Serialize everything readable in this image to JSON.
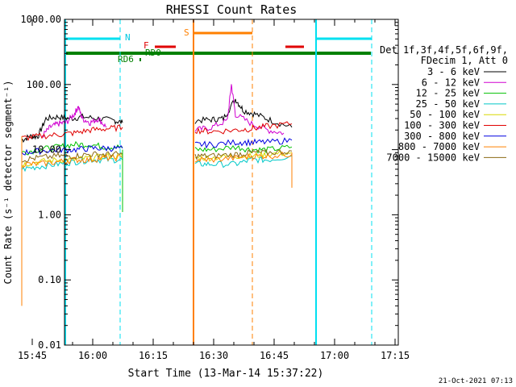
{
  "chart_data": {
    "type": "line",
    "title": "RHESSI Count Rates",
    "xlabel": "Start Time (13-Mar-14 15:37:22)",
    "ylabel": "Count Rate (s⁻¹ detector segment⁻¹)",
    "ylog": true,
    "ylim": [
      0.01,
      1000
    ],
    "xlim_minutes": [
      15.6,
      98.4
    ],
    "y_ticks": [
      "1000.00",
      "100.00",
      "10.00",
      "1.00",
      "0.10",
      "0.01"
    ],
    "x_ticks": [
      {
        "label": "15:45",
        "min": 7.6
      },
      {
        "label": "16:00",
        "min": 22.6
      },
      {
        "label": "16:15",
        "min": 37.6
      },
      {
        "label": "16:30",
        "min": 52.6
      },
      {
        "label": "16:45",
        "min": 67.6
      },
      {
        "label": "17:00",
        "min": 82.6
      },
      {
        "label": "17:15",
        "min": 97.6
      }
    ],
    "timestamp": "21-Oct-2021 07:13",
    "legend": {
      "header": [
        "Det 1f,3f,4f,5f,6f,9f,",
        "FDecim 1, Att 0"
      ],
      "placement": "right"
    },
    "series": [
      {
        "name": "3 - 6 keV",
        "color": "#000000",
        "seg1": [
          [
            5,
            14
          ],
          [
            7,
            16
          ],
          [
            9,
            16
          ],
          [
            11,
            30
          ],
          [
            14,
            32
          ],
          [
            17,
            30
          ],
          [
            20,
            32
          ],
          [
            24,
            30
          ],
          [
            28,
            28
          ],
          [
            30,
            26
          ]
        ],
        "seg2": [
          [
            48,
            28
          ],
          [
            52,
            29
          ],
          [
            55,
            30
          ],
          [
            58,
            60
          ],
          [
            60,
            40
          ],
          [
            63,
            35
          ],
          [
            67,
            28
          ],
          [
            72,
            22
          ]
        ]
      },
      {
        "name": "6 - 12 keV",
        "color": "#d000d0",
        "seg1": [
          [
            10,
            16
          ],
          [
            12,
            22
          ],
          [
            14,
            25
          ],
          [
            16,
            26
          ],
          [
            18,
            35
          ],
          [
            19,
            46
          ],
          [
            20,
            30
          ],
          [
            22,
            26
          ],
          [
            24,
            30
          ],
          [
            26,
            22
          ]
        ],
        "seg2": [
          [
            48,
            20
          ],
          [
            52,
            22
          ],
          [
            56,
            28
          ],
          [
            57,
            100
          ],
          [
            58,
            35
          ],
          [
            62,
            25
          ],
          [
            66,
            20
          ],
          [
            70,
            18
          ]
        ]
      },
      {
        "name": "12 - 25 keV",
        "color": "#00c000",
        "seg1": [
          [
            5,
            9
          ],
          [
            9,
            10
          ],
          [
            14,
            11
          ],
          [
            18,
            12
          ],
          [
            22,
            12
          ],
          [
            26,
            11
          ],
          [
            30,
            11
          ]
        ],
        "seg2": [
          [
            48,
            10
          ],
          [
            52,
            10
          ],
          [
            58,
            11
          ],
          [
            62,
            10
          ],
          [
            66,
            10
          ],
          [
            72,
            11
          ]
        ]
      },
      {
        "name": "25 - 50 keV",
        "color": "#00c8c8",
        "seg1": [
          [
            5,
            5
          ],
          [
            9,
            5.5
          ],
          [
            14,
            6
          ],
          [
            18,
            6.5
          ],
          [
            22,
            7
          ],
          [
            26,
            7
          ],
          [
            30,
            7
          ]
        ],
        "seg2": [
          [
            48,
            6
          ],
          [
            52,
            6
          ],
          [
            58,
            6
          ],
          [
            62,
            7
          ],
          [
            66,
            7
          ],
          [
            72,
            8
          ]
        ]
      },
      {
        "name": "50 - 100 keV",
        "color": "#d8d800",
        "seg1": [
          [
            5,
            6
          ],
          [
            9,
            6.5
          ],
          [
            14,
            7
          ],
          [
            18,
            7
          ],
          [
            22,
            7.5
          ],
          [
            26,
            8
          ],
          [
            30,
            8
          ]
        ],
        "seg2": [
          [
            48,
            7.5
          ],
          [
            52,
            7.5
          ],
          [
            58,
            8
          ],
          [
            62,
            8
          ],
          [
            66,
            8.5
          ],
          [
            72,
            9
          ]
        ]
      },
      {
        "name": "100 - 300 keV",
        "color": "#e00000",
        "seg1": [
          [
            5,
            15
          ],
          [
            9,
            16
          ],
          [
            14,
            17
          ],
          [
            18,
            18
          ],
          [
            22,
            20
          ],
          [
            26,
            21
          ],
          [
            30,
            22
          ]
        ],
        "seg2": [
          [
            48,
            20
          ],
          [
            52,
            19
          ],
          [
            58,
            20
          ],
          [
            62,
            21
          ],
          [
            66,
            23
          ],
          [
            72,
            25
          ]
        ]
      },
      {
        "name": "300 - 800 keV",
        "color": "#0000e0",
        "seg1": [
          [
            5,
            9
          ],
          [
            9,
            9.5
          ],
          [
            14,
            10
          ],
          [
            18,
            10
          ],
          [
            22,
            10.5
          ],
          [
            26,
            10.5
          ],
          [
            30,
            10.5
          ]
        ],
        "seg2": [
          [
            48,
            12
          ],
          [
            52,
            12
          ],
          [
            58,
            13
          ],
          [
            62,
            13
          ],
          [
            66,
            13
          ],
          [
            72,
            14
          ]
        ]
      },
      {
        "name": "800 - 7000 keV",
        "color": "#ff8000",
        "seg1": [
          [
            5,
            6
          ],
          [
            9,
            6
          ],
          [
            14,
            6.5
          ],
          [
            18,
            7
          ],
          [
            22,
            7
          ],
          [
            26,
            7.5
          ],
          [
            30,
            7.5
          ]
        ],
        "seg2": [
          [
            48,
            7
          ],
          [
            52,
            7
          ],
          [
            58,
            7.5
          ],
          [
            62,
            8
          ],
          [
            66,
            8
          ],
          [
            72,
            8.5
          ]
        ]
      },
      {
        "name": "7000 - 15000 keV",
        "color": "#8b6914",
        "seg1": [
          [
            5,
            7
          ],
          [
            9,
            7.5
          ],
          [
            14,
            8
          ],
          [
            18,
            8
          ],
          [
            22,
            8.5
          ],
          [
            26,
            8.5
          ],
          [
            30,
            8.5
          ]
        ],
        "seg2": [
          [
            48,
            8
          ],
          [
            52,
            8
          ],
          [
            58,
            8.5
          ],
          [
            62,
            9
          ],
          [
            66,
            9
          ],
          [
            72,
            9.5
          ]
        ]
      }
    ],
    "annotations": {
      "flags": [
        {
          "label": "N",
          "color": "#00c8e0"
        },
        {
          "label": "S",
          "color": "#ff8000"
        },
        {
          "label": "F",
          "color": "#e00000"
        },
        {
          "label": "RD0",
          "color": "#008000"
        },
        {
          "label": "RD6",
          "color": "#008000"
        }
      ]
    }
  }
}
